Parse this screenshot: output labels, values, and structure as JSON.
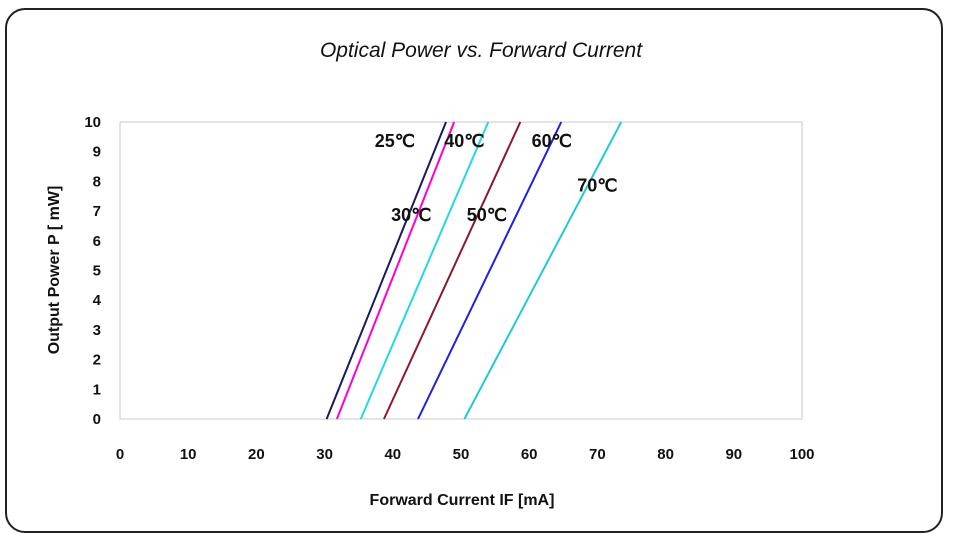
{
  "chart_data": {
    "type": "line",
    "title": "Optical Power vs. Forward Current",
    "xlabel": "Forward Current IF [mA]",
    "ylabel": "Output Power P  [ mW]",
    "xlim": [
      0,
      100
    ],
    "ylim": [
      0,
      10
    ],
    "xticks": [
      "0",
      "10",
      "20",
      "30",
      "40",
      "50",
      "60",
      "70",
      "80",
      "90",
      "100"
    ],
    "yticks": [
      "0",
      "1",
      "2",
      "3",
      "4",
      "5",
      "6",
      "7",
      "8",
      "9",
      "10"
    ],
    "grid": false,
    "series": [
      {
        "name": "25℃",
        "color": "#1a1a5e",
        "x": [
          30.3,
          47.8
        ],
        "y": [
          0,
          10
        ]
      },
      {
        "name": "30℃",
        "color": "#ff00cc",
        "x": [
          31.8,
          49.0
        ],
        "y": [
          0,
          10
        ]
      },
      {
        "name": "40℃",
        "color": "#22d8e8",
        "x": [
          35.3,
          54.0
        ],
        "y": [
          0,
          10
        ]
      },
      {
        "name": "50℃",
        "color": "#8b1a2a",
        "x": [
          38.7,
          58.7
        ],
        "y": [
          0,
          10
        ]
      },
      {
        "name": "60℃",
        "color": "#2020e0",
        "x": [
          43.7,
          64.7
        ],
        "y": [
          0,
          10
        ]
      },
      {
        "name": "70℃",
        "color": "#22c8d8",
        "x": [
          50.5,
          73.5
        ],
        "y": [
          0,
          10
        ]
      }
    ],
    "annotations": [
      {
        "text": "25℃",
        "series": "25℃",
        "x": 40.3,
        "y": 9.4
      },
      {
        "text": "40℃",
        "series": "40℃",
        "x": 50.5,
        "y": 9.4
      },
      {
        "text": "60℃",
        "series": "60℃",
        "x": 63.3,
        "y": 9.4
      },
      {
        "text": "30℃",
        "series": "30℃",
        "x": 42.7,
        "y": 6.9
      },
      {
        "text": "50℃",
        "series": "50℃",
        "x": 53.8,
        "y": 6.9
      },
      {
        "text": "70℃",
        "series": "70℃",
        "x": 70.0,
        "y": 7.9
      }
    ]
  }
}
